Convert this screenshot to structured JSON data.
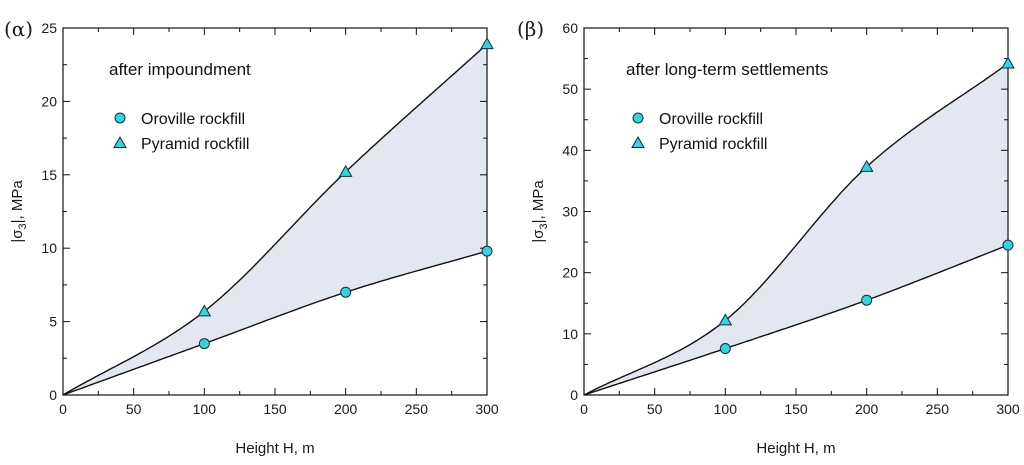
{
  "chart_data": [
    {
      "type": "line",
      "panel_label": "(α)",
      "annotation": "after impoundment",
      "xlabel": "Height H, m",
      "ylabel_parts": [
        "|σ",
        "3",
        "|, MPa"
      ],
      "xlim": [
        0,
        300
      ],
      "ylim": [
        0,
        25
      ],
      "xticks": [
        0,
        50,
        100,
        150,
        200,
        250,
        300
      ],
      "yticks": [
        0,
        5,
        10,
        15,
        20,
        25
      ],
      "legend_placement": "upper-left",
      "grid": false,
      "shaded_band": true,
      "series": [
        {
          "name": "Oroville rockfill",
          "marker": "circle",
          "x": [
            0,
            100,
            200,
            300
          ],
          "y": [
            0,
            3.5,
            7.0,
            9.8
          ]
        },
        {
          "name": "Pyramid rockfill",
          "marker": "triangle",
          "x": [
            0,
            100,
            200,
            300
          ],
          "y": [
            0,
            5.7,
            15.2,
            23.9
          ]
        }
      ]
    },
    {
      "type": "line",
      "panel_label": "(β)",
      "annotation": "after long-term settlements",
      "xlabel": "Height H, m",
      "ylabel_parts": [
        "|σ",
        "3",
        "|, MPa"
      ],
      "xlim": [
        0,
        300
      ],
      "ylim": [
        0,
        60
      ],
      "xticks": [
        0,
        50,
        100,
        150,
        200,
        250,
        300
      ],
      "yticks": [
        0,
        10,
        20,
        30,
        40,
        50,
        60
      ],
      "legend_placement": "upper-left",
      "grid": false,
      "shaded_band": true,
      "series": [
        {
          "name": "Oroville rockfill",
          "marker": "circle",
          "x": [
            0,
            100,
            200,
            300
          ],
          "y": [
            0,
            7.6,
            15.5,
            24.5
          ]
        },
        {
          "name": "Pyramid rockfill",
          "marker": "triangle",
          "x": [
            0,
            100,
            200,
            300
          ],
          "y": [
            0,
            12.2,
            37.3,
            54.2
          ]
        }
      ]
    }
  ],
  "colors": {
    "marker_fill": "#3dd0dc",
    "marker_stroke": "#0b2f40",
    "band_fill": "#e3e7f2",
    "line": "#111111"
  }
}
